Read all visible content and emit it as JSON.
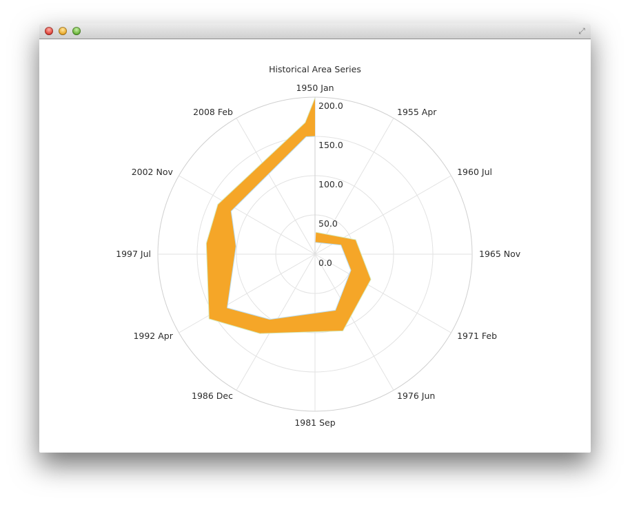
{
  "window": {
    "fullscreen_icon": "fullscreen-arrows-icon"
  },
  "chart_data": {
    "type": "area",
    "polar": true,
    "title": "Historical Area Series",
    "angular_axis": {
      "type": "datetime",
      "range": [
        "1950-01",
        "2013-01"
      ],
      "tick_labels": [
        "1950 Jan",
        "1955 Apr",
        "1960 Jul",
        "1965 Nov",
        "1971 Feb",
        "1976 Jun",
        "1981 Sep",
        "1986 Dec",
        "1992 Apr",
        "1997 Jul",
        "2002 Nov",
        "2008 Feb"
      ]
    },
    "radial_axis": {
      "range": [
        0,
        200
      ],
      "tick_labels": [
        "0.0",
        "50.0",
        "100.0",
        "150.0",
        "200.0"
      ]
    },
    "grid": true,
    "fill_color": "#f5a628",
    "upper_line_color": "#d6ecc0",
    "lower_line_color": "#b9dcf2",
    "upper_series": {
      "x": [
        "1950-06",
        "1962-05",
        "1970-01",
        "1978-01",
        "1987-08",
        "1991-10",
        "1998-04",
        "2002-01",
        "2012-04",
        "2013-01"
      ],
      "y": [
        28,
        55,
        78,
        104,
        123,
        158,
        139,
        139,
        168,
        199
      ]
    },
    "lower_series": {
      "x": [
        "1950-06",
        "1962-05",
        "1970-01",
        "1978-01",
        "1987-08",
        "1991-10",
        "1998-04",
        "2002-01",
        "2012-04",
        "2013-01"
      ],
      "y": [
        15,
        35,
        50,
        76,
        101,
        131,
        101,
        120,
        150,
        150
      ]
    }
  }
}
